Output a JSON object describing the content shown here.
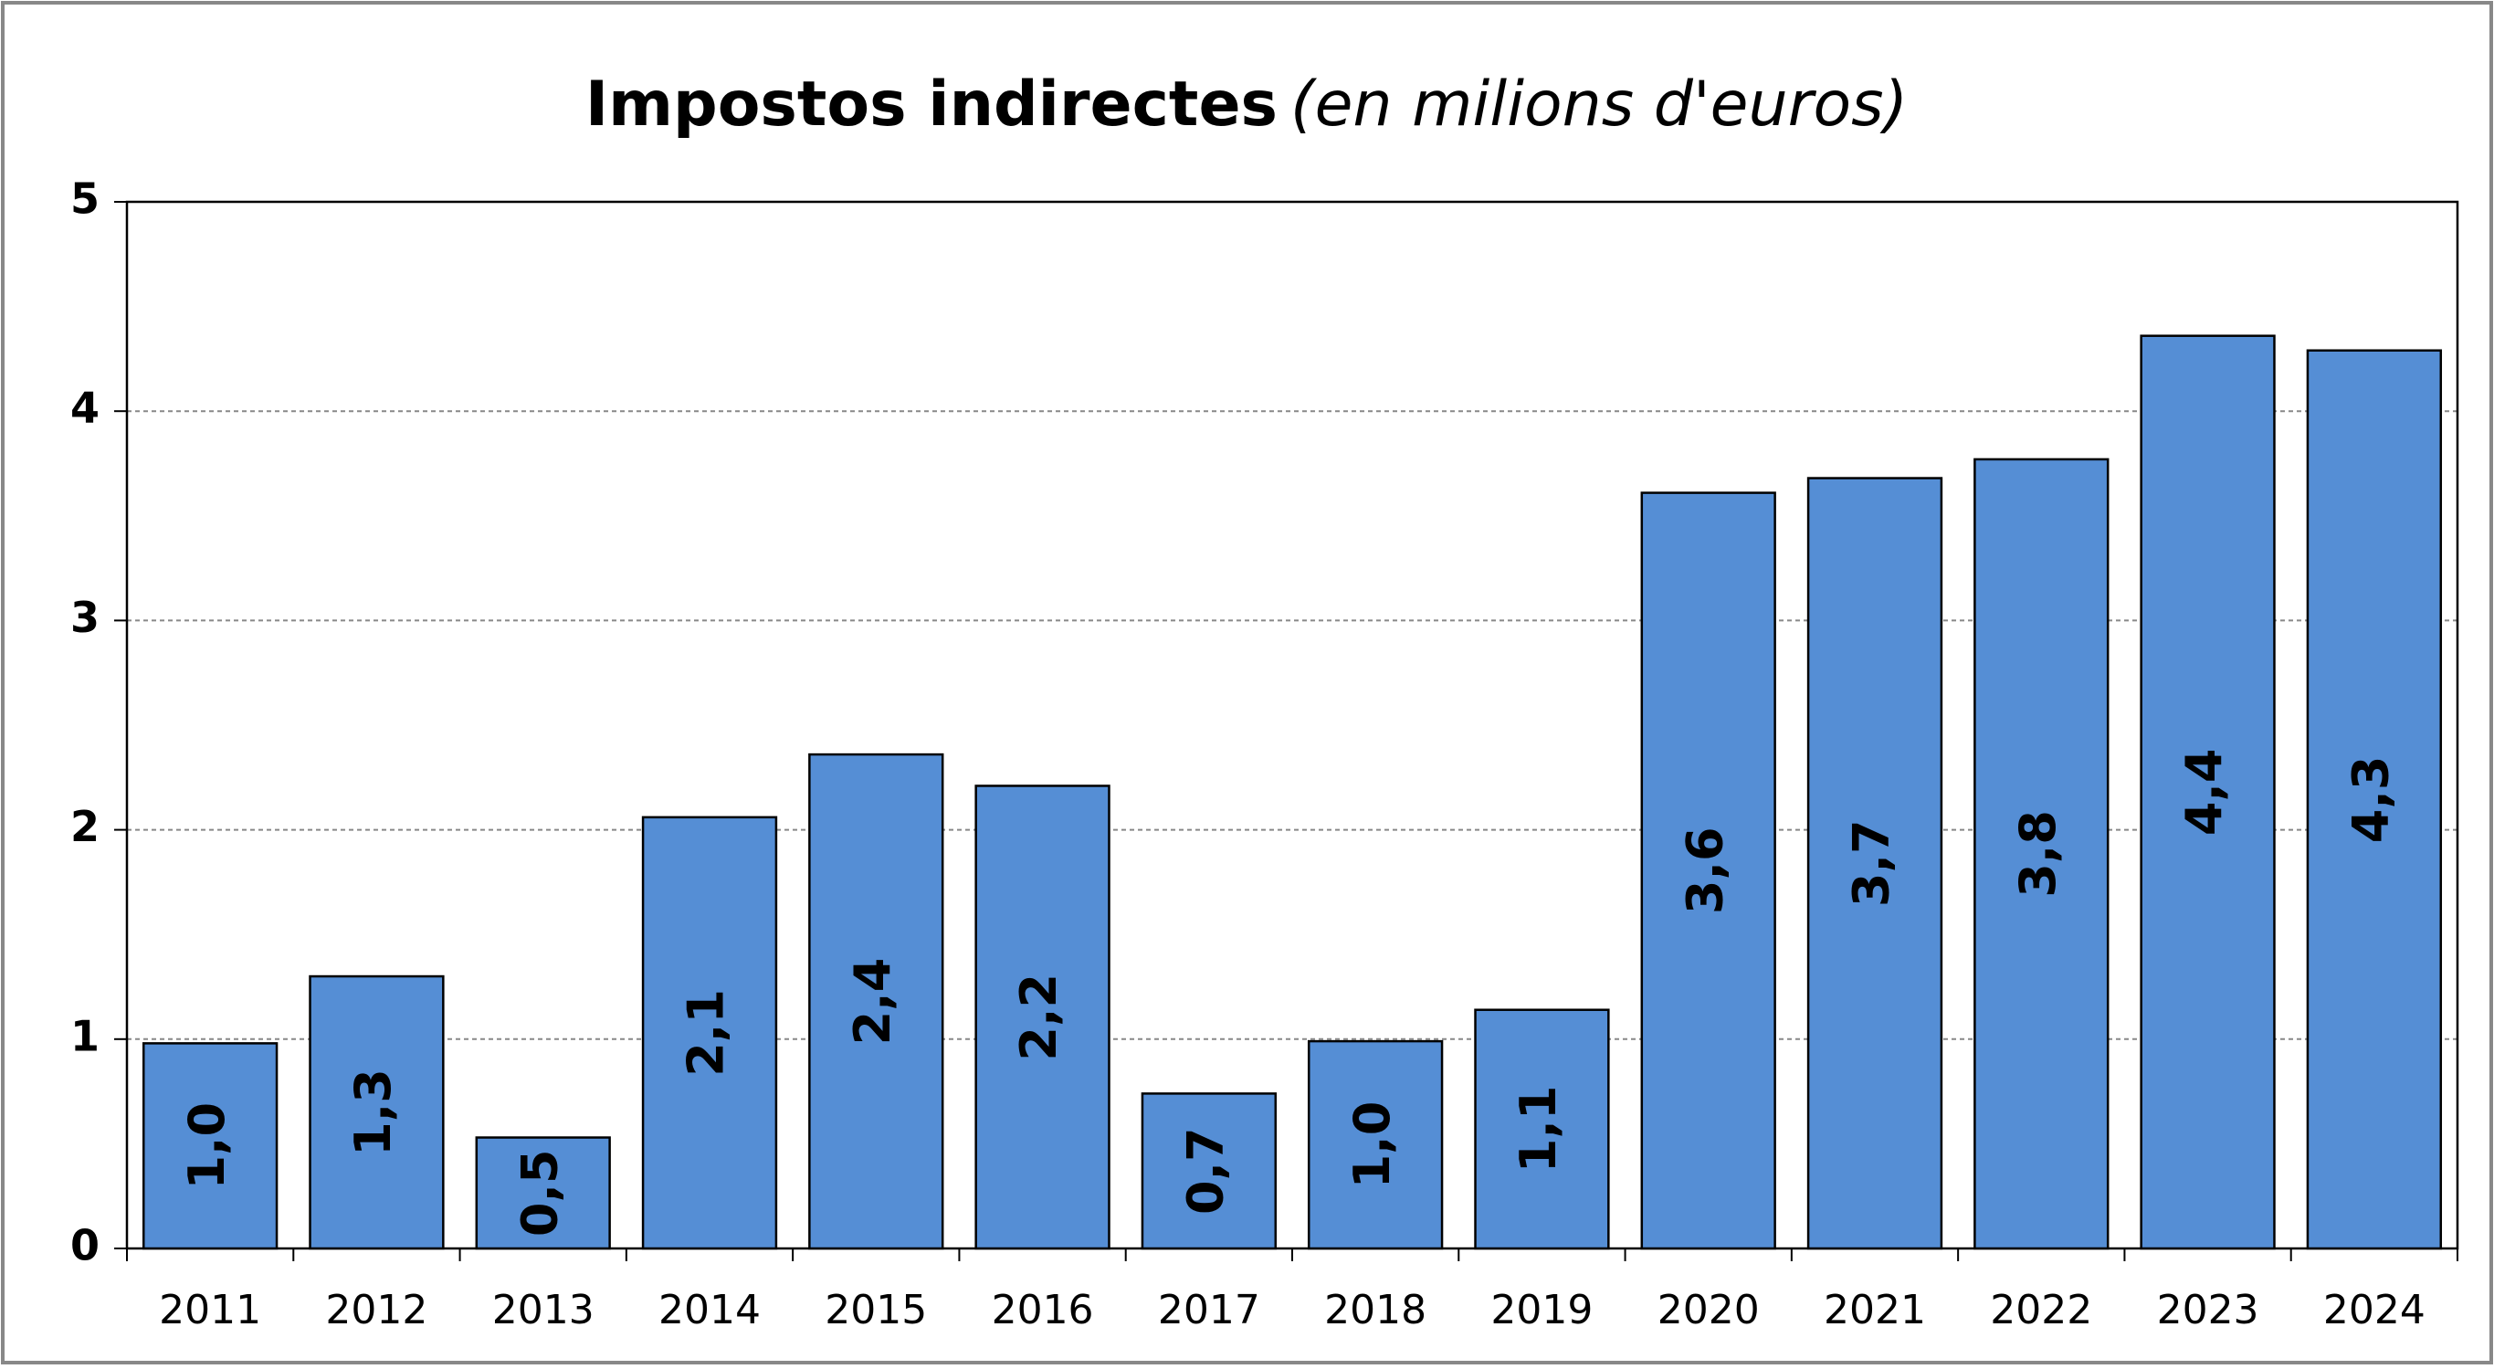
{
  "chart_data": {
    "type": "bar",
    "title": "Impostos indirectes",
    "subtitle": "(en milions d'euros)",
    "categories": [
      "2011",
      "2012",
      "2013",
      "2014",
      "2015",
      "2016",
      "2017",
      "2018",
      "2019",
      "2020",
      "2021",
      "2022",
      "2023",
      "2024"
    ],
    "values": [
      0.98,
      1.3,
      0.53,
      2.06,
      2.36,
      2.21,
      0.74,
      0.99,
      1.14,
      3.61,
      3.68,
      3.77,
      4.36,
      4.29
    ],
    "value_labels": [
      "1,0",
      "1,3",
      "0,5",
      "2,1",
      "2,4",
      "2,2",
      "0,7",
      "1,0",
      "1,1",
      "3,6",
      "3,7",
      "3,8",
      "4,4",
      "4,3"
    ],
    "color": "#558ed5",
    "ylim": [
      0,
      5
    ],
    "yticks": [
      0,
      1,
      2,
      3,
      4,
      5
    ],
    "grid": true
  }
}
